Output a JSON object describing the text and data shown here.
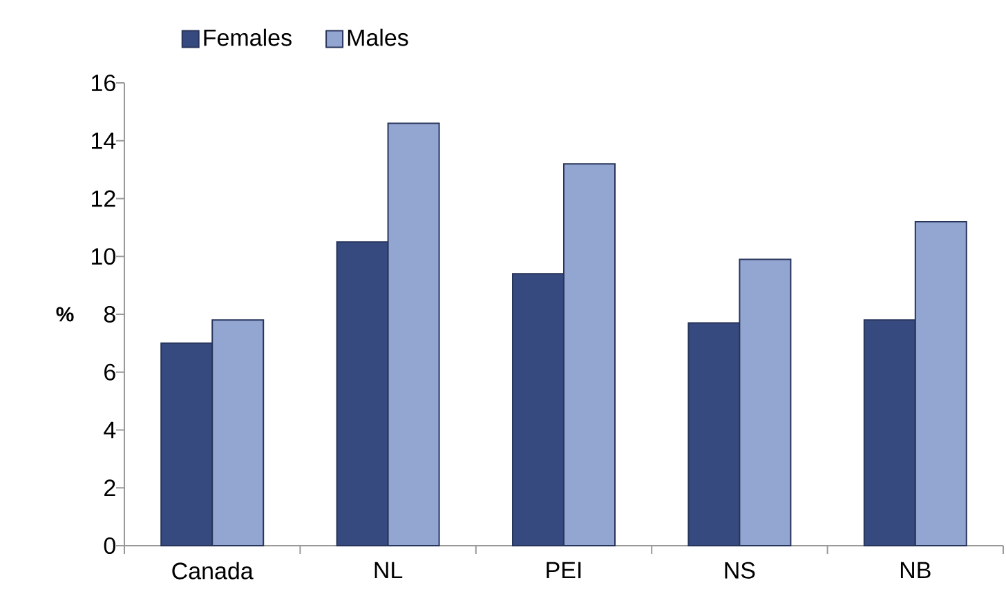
{
  "chart_data": {
    "type": "bar",
    "ylabel": "%",
    "categories": [
      "Canada",
      "NL",
      "PEI",
      "NS",
      "NB"
    ],
    "series": [
      {
        "name": "Females",
        "color": "#374a7f",
        "values": [
          7.0,
          10.5,
          9.4,
          7.7,
          7.8
        ]
      },
      {
        "name": "Males",
        "color": "#93a6d1",
        "values": [
          7.8,
          14.6,
          13.2,
          9.9,
          11.2
        ]
      }
    ],
    "ylim": [
      0,
      16
    ],
    "yticks": [
      0,
      2,
      4,
      6,
      8,
      10,
      12,
      14,
      16
    ],
    "grid": false,
    "legend": "top left"
  }
}
